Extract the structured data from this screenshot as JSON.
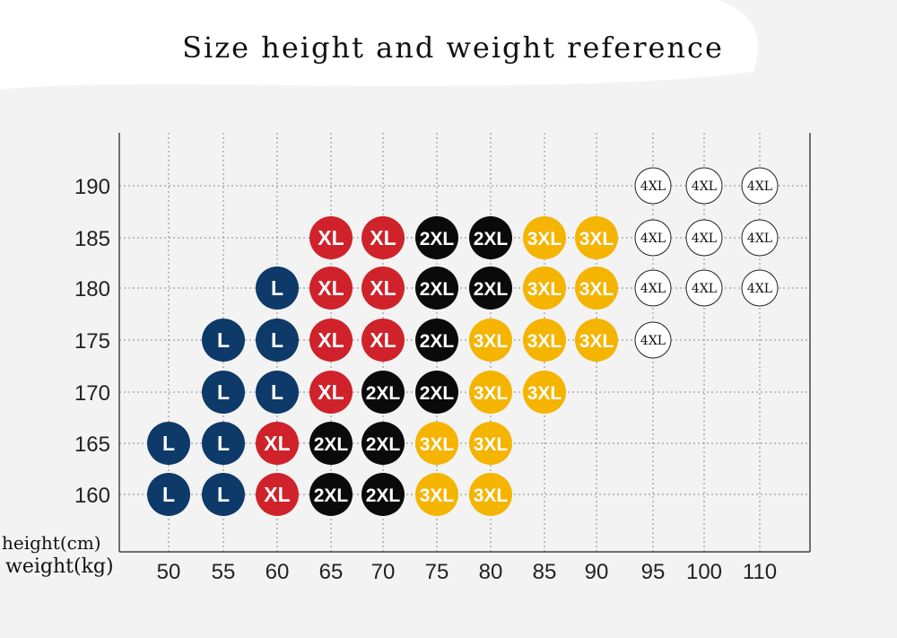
{
  "title": "Size height and weight reference",
  "height_label": "height(cm)",
  "weight_label": "weight(kg)",
  "columns": [
    "50",
    "55",
    "60",
    "65",
    "70",
    "75",
    "80",
    "85",
    "90",
    "95",
    "100",
    "110"
  ],
  "size_colors": {
    "L": "#0d3a68",
    "XL": "#d0222a",
    "2XL": "#0a0a0a",
    "3XL": "#f4b400",
    "4XL": "#ffffff"
  },
  "rows": [
    {
      "height": "190",
      "cells": [
        null,
        null,
        null,
        null,
        null,
        null,
        null,
        null,
        null,
        "4XL",
        "4XL",
        "4XL"
      ]
    },
    {
      "height": "185",
      "cells": [
        null,
        null,
        null,
        "XL",
        "XL",
        "2XL",
        "2XL",
        "3XL",
        "3XL",
        "4XL",
        "4XL",
        "4XL"
      ]
    },
    {
      "height": "180",
      "cells": [
        null,
        null,
        "L",
        "XL",
        "XL",
        "2XL",
        "2XL",
        "3XL",
        "3XL",
        "4XL",
        "4XL",
        "4XL"
      ]
    },
    {
      "height": "175",
      "cells": [
        null,
        "L",
        "L",
        "XL",
        "XL",
        "2XL",
        "3XL",
        "3XL",
        "3XL",
        "4XL",
        null,
        null
      ]
    },
    {
      "height": "170",
      "cells": [
        null,
        "L",
        "L",
        "XL",
        "2XL",
        "2XL",
        "3XL",
        "3XL",
        null,
        null,
        null,
        null
      ]
    },
    {
      "height": "165",
      "cells": [
        "L",
        "L",
        "XL",
        "2XL",
        "2XL",
        "3XL",
        "3XL",
        null,
        null,
        null,
        null,
        null
      ]
    },
    {
      "height": "160",
      "cells": [
        "L",
        "L",
        "XL",
        "2XL",
        "2XL",
        "3XL",
        "3XL",
        null,
        null,
        null,
        null,
        null
      ]
    }
  ]
}
